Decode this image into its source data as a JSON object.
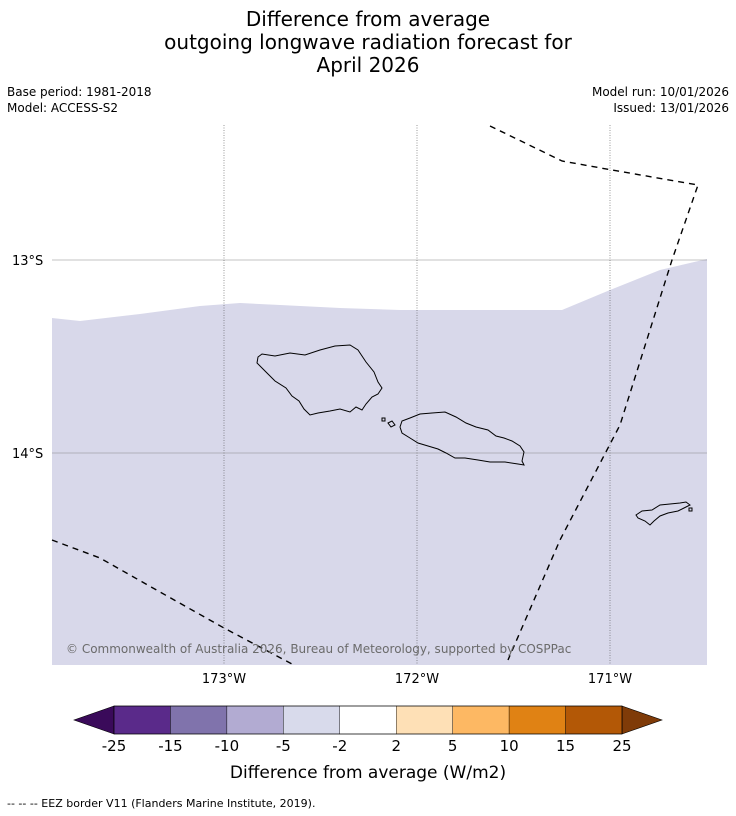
{
  "title": {
    "line1": "Difference from average",
    "line2": "outgoing longwave radiation forecast for",
    "line3": "April 2026"
  },
  "meta": {
    "base_period": "Base period: 1981-2018",
    "model": "Model: ACCESS-S2",
    "model_run": "Model run: 10/01/2026",
    "issued": "Issued: 13/01/2026"
  },
  "map": {
    "background_color": "#ffffff",
    "field_color": "#d8d8ea",
    "lat_labels": [
      "13°S",
      "14°S"
    ],
    "lon_labels": [
      "173°W",
      "172°W",
      "171°W"
    ],
    "copyright": "© Commonwealth of Australia 2026, Bureau of Meteorology, supported by COSPPac"
  },
  "colorbar": {
    "title": "Difference from average (W/m2)",
    "tick_labels": [
      "-25",
      "-15",
      "-10",
      "-5",
      "-2",
      "2",
      "5",
      "10",
      "15",
      "25"
    ],
    "under_color": "#3a0a5a",
    "over_color": "#7f3b08",
    "colors": [
      "#5a2a8a",
      "#8073ac",
      "#b2abd2",
      "#d8daeb",
      "#ffffff",
      "#fee0b6",
      "#fdb863",
      "#e08214",
      "#b35806"
    ]
  },
  "footnote": "--  --  -- EEZ border V11 (Flanders Marine Institute, 2019)."
}
